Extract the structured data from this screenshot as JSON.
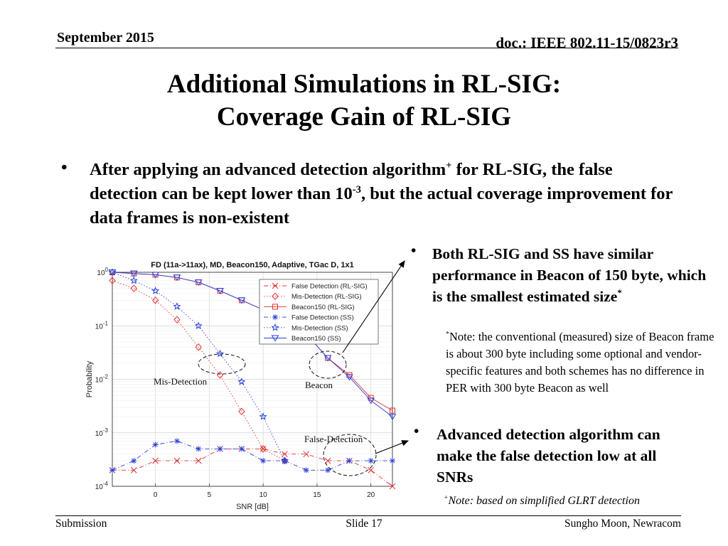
{
  "header": {
    "date": "September 2015",
    "doc": "doc.: IEEE 802.11-15/0823r3"
  },
  "title": {
    "line1": "Additional Simulations in RL-SIG:",
    "line2": "Coverage Gain of RL-SIG"
  },
  "bullet_main": {
    "part1": "After applying an advanced detection algorithm",
    "sup1": "+",
    "part2": " for RL-SIG, the false detection can be kept lower than 10",
    "sup2": "-3",
    "part3": ", but the actual coverage improvement for data frames is non-existent"
  },
  "bullet_beacon": {
    "text": "Both RL-SIG and SS have similar performance in Beacon of 150 byte, which is the smallest estimated size",
    "sup": "*"
  },
  "note_beacon": {
    "sup": "*",
    "text": "Note: the conventional (measured) size of Beacon frame is about 300 byte including some optional and vendor-specific features and both schemes has no difference in PER with 300 byte Beacon as well"
  },
  "bullet_detect": {
    "text": "Advanced detection algorithm can make the false detection low at all SNRs"
  },
  "note_glrt": {
    "sup": "+",
    "text": "Note: based on simplified GLRT detection"
  },
  "footer": {
    "left": "Submission",
    "center": "Slide 17",
    "right": "Sungho Moon, Newracom"
  },
  "chart_data": {
    "type": "line",
    "title": "FD (11a->11ax), MD, Beacon150, Adaptive, TGac D, 1x1",
    "xlabel": "SNR [dB]",
    "ylabel": "Probability",
    "yscale": "log",
    "xlim": [
      -4,
      22
    ],
    "ylim": [
      0.0001,
      1
    ],
    "xticks": [
      0,
      5,
      10,
      15,
      20
    ],
    "yticks": [
      {
        "base": "10",
        "exp": "0",
        "value": 1
      },
      {
        "base": "10",
        "exp": "-1",
        "value": 0.1
      },
      {
        "base": "10",
        "exp": "-2",
        "value": 0.01
      },
      {
        "base": "10",
        "exp": "-3",
        "value": 0.001
      },
      {
        "base": "10",
        "exp": "-4",
        "value": 0.0001
      }
    ],
    "grid": true,
    "legend_position": "top-right",
    "annotations": {
      "mis_detection": "Mis-Detection",
      "beacon": "Beacon",
      "false_detection": "False-Detection"
    },
    "x": [
      -4,
      -2,
      0,
      2,
      4,
      6,
      8,
      10,
      12,
      14,
      16,
      18,
      20,
      22
    ],
    "series": [
      {
        "name": "False Detection (RL-SIG)",
        "color": "#e03030",
        "dash": "6,3,1,3",
        "marker": "x",
        "values": [
          0.0002,
          0.0002,
          0.0003,
          0.0003,
          0.0003,
          0.0005,
          0.0005,
          0.0005,
          0.0004,
          0.0004,
          0.0003,
          0.0003,
          0.0002,
          0.0001
        ]
      },
      {
        "name": "Mis-Detection (RL-SIG)",
        "color": "#e03030",
        "dash": "1.5,2.5",
        "marker": "diamond",
        "values": [
          0.7,
          0.5,
          0.3,
          0.13,
          0.04,
          0.012,
          0.0025,
          0.0005,
          0.0003,
          null,
          null,
          null,
          null,
          null
        ]
      },
      {
        "name": "Beacon150 (RL-SIG)",
        "color": "#e03030",
        "dash": "",
        "marker": "square",
        "values": [
          1.0,
          0.95,
          0.9,
          0.8,
          0.65,
          0.45,
          0.3,
          0.2,
          0.13,
          0.07,
          0.025,
          0.012,
          0.0045,
          0.0026
        ]
      },
      {
        "name": "False Detection (SS)",
        "color": "#2a3fd8",
        "dash": "6,3,1,3",
        "marker": "asterisk",
        "values": [
          0.0002,
          0.0003,
          0.0006,
          0.0007,
          0.0005,
          0.0005,
          0.0005,
          0.0003,
          0.0003,
          0.0002,
          0.0002,
          0.0003,
          0.0003,
          0.0003
        ]
      },
      {
        "name": "Mis-Detection (SS)",
        "color": "#2a3fd8",
        "dash": "1.5,2.5",
        "marker": "star",
        "values": [
          1.0,
          0.7,
          0.45,
          0.23,
          0.1,
          0.03,
          0.009,
          0.002,
          0.0003,
          null,
          null,
          null,
          null,
          null
        ]
      },
      {
        "name": "Beacon150 (SS)",
        "color": "#2a3fd8",
        "dash": "",
        "marker": "triangle-down",
        "values": [
          1.0,
          0.95,
          0.9,
          0.8,
          0.65,
          0.45,
          0.3,
          0.2,
          0.13,
          0.07,
          0.025,
          0.011,
          0.004,
          0.002
        ]
      }
    ]
  }
}
